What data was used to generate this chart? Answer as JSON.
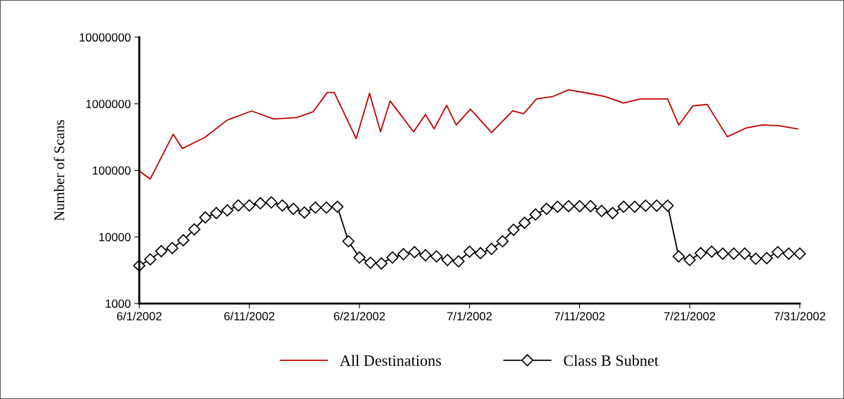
{
  "chart_data": {
    "type": "line",
    "ylabel": "Number of Scans",
    "log": "y",
    "legend": "bottom",
    "grid": false,
    "xlim": [
      "2002-06-01",
      "2002-07-31"
    ],
    "xticks": [
      {
        "value": "2002-06-01",
        "label": "6/1/2002"
      },
      {
        "value": "2002-06-11",
        "label": "6/11/2002"
      },
      {
        "value": "2002-06-21",
        "label": "6/21/2002"
      },
      {
        "value": "2002-07-01",
        "label": "7/1/2002"
      },
      {
        "value": "2002-07-11",
        "label": "7/11/2002"
      },
      {
        "value": "2002-07-21",
        "label": "7/21/2002"
      },
      {
        "value": "2002-07-31",
        "label": "7/31/2002"
      }
    ],
    "ylim": [
      1000,
      10000000
    ],
    "yticks": [
      1000,
      10000,
      100000,
      1000000,
      10000000
    ],
    "series": [
      {
        "name": "All Destinations",
        "color": "#c00000",
        "marker": "none",
        "x": [
          "2002-06-01",
          "2002-06-02",
          "2002-06-04T02:00",
          "2002-06-04T22:00",
          "2002-06-06T22:00",
          "2002-06-09",
          "2002-06-11T05:00",
          "2002-06-13T05:00",
          "2002-06-15T07:00",
          "2002-06-16T19:00",
          "2002-06-18T02:00",
          "2002-06-18T17:00",
          "2002-06-20T17:00",
          "2002-06-21T22:00",
          "2002-06-22T22:00",
          "2002-06-23T19:00",
          "2002-06-25T22:00",
          "2002-06-27",
          "2002-06-27T19:00",
          "2002-06-28T22:00",
          "2002-06-29T19:00",
          "2002-07-01T02:00",
          "2002-07-03",
          "2002-07-04T22:00",
          "2002-07-05T22:00",
          "2002-07-07T02:00",
          "2002-07-08T14:00",
          "2002-07-10",
          "2002-07-11T19:00",
          "2002-07-13T07:00",
          "2002-07-15",
          "2002-07-16T12:00",
          "2002-07-19",
          "2002-07-20",
          "2002-07-21T07:00",
          "2002-07-22T14:00",
          "2002-07-24T10:00",
          "2002-07-26T02:00",
          "2002-07-27T14:00",
          "2002-07-29T02:00",
          "2002-07-30T19:00"
        ],
        "values": [
          98000,
          74000,
          350000,
          213000,
          310000,
          570000,
          780000,
          590000,
          620000,
          760000,
          1480000,
          1480000,
          300000,
          1440000,
          380000,
          1100000,
          380000,
          690000,
          420000,
          950000,
          480000,
          830000,
          370000,
          780000,
          710000,
          1180000,
          1290000,
          1620000,
          1440000,
          1290000,
          1030000,
          1180000,
          1180000,
          480000,
          930000,
          980000,
          320000,
          430000,
          480000,
          470000,
          420000
        ]
      },
      {
        "name": "Class B Subnet",
        "color": "#000000",
        "marker": "diamond",
        "x": [
          "2002-06-01",
          "2002-06-02",
          "2002-06-03",
          "2002-06-04",
          "2002-06-05",
          "2002-06-06",
          "2002-06-07",
          "2002-06-08",
          "2002-06-09",
          "2002-06-10",
          "2002-06-11",
          "2002-06-12",
          "2002-06-13",
          "2002-06-14",
          "2002-06-15",
          "2002-06-16",
          "2002-06-17",
          "2002-06-18",
          "2002-06-19",
          "2002-06-20",
          "2002-06-21",
          "2002-06-22",
          "2002-06-23",
          "2002-06-24",
          "2002-06-25",
          "2002-06-26",
          "2002-06-27",
          "2002-06-28",
          "2002-06-29",
          "2002-06-30",
          "2002-07-01",
          "2002-07-02",
          "2002-07-03",
          "2002-07-04",
          "2002-07-05",
          "2002-07-06",
          "2002-07-07",
          "2002-07-08",
          "2002-07-09",
          "2002-07-10",
          "2002-07-11",
          "2002-07-12",
          "2002-07-13",
          "2002-07-14",
          "2002-07-15",
          "2002-07-16",
          "2002-07-17",
          "2002-07-18",
          "2002-07-19",
          "2002-07-20",
          "2002-07-21",
          "2002-07-22",
          "2002-07-23",
          "2002-07-24",
          "2002-07-25",
          "2002-07-26",
          "2002-07-27",
          "2002-07-28",
          "2002-07-29",
          "2002-07-30",
          "2002-07-31"
        ],
        "values": [
          3700,
          4600,
          6100,
          6800,
          8900,
          13000,
          19600,
          22800,
          25000,
          29700,
          29700,
          32000,
          33000,
          29700,
          26400,
          23300,
          27600,
          27600,
          28400,
          8600,
          4900,
          4100,
          4000,
          4900,
          5500,
          5900,
          5300,
          5100,
          4500,
          4300,
          6000,
          5700,
          6600,
          8600,
          12800,
          16300,
          21700,
          26400,
          28400,
          29000,
          29000,
          29000,
          24500,
          22800,
          28400,
          28400,
          29500,
          29500,
          29500,
          5100,
          4500,
          5700,
          6000,
          5600,
          5600,
          5600,
          4700,
          4800,
          5900,
          5600,
          5600
        ]
      }
    ]
  }
}
